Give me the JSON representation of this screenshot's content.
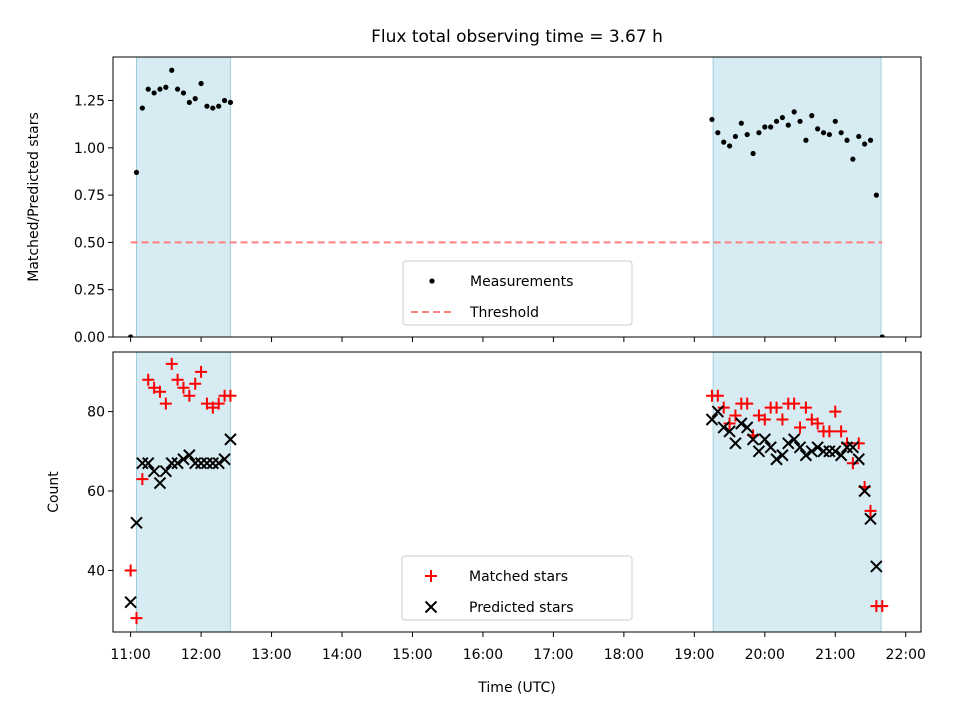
{
  "chart_data": [
    {
      "type": "scatter",
      "title": "Flux total observing time = 3.67 h",
      "xlabel": "",
      "ylabel": "Matched/Predicted stars",
      "xlim": [
        "10:45",
        "22:13"
      ],
      "ylim": [
        0,
        1.48
      ],
      "yticks": [
        "0.00",
        "0.25",
        "0.50",
        "0.75",
        "1.00",
        "1.25"
      ],
      "shaded_intervals": [
        [
          "11:05",
          "12:25"
        ],
        [
          "19:16",
          "21:39"
        ]
      ],
      "legend": {
        "placement": "lower-center",
        "entries": [
          "Measurements",
          "Threshold"
        ]
      },
      "series": [
        {
          "name": "Measurements",
          "marker": "dot",
          "color": "#000000",
          "x": [
            "11:00",
            "11:05",
            "11:10",
            "11:15",
            "11:20",
            "11:25",
            "11:30",
            "11:35",
            "11:40",
            "11:45",
            "11:50",
            "11:55",
            "12:00",
            "12:05",
            "12:10",
            "12:15",
            "12:20",
            "12:25",
            "19:15",
            "19:20",
            "19:25",
            "19:30",
            "19:35",
            "19:40",
            "19:45",
            "19:50",
            "19:55",
            "20:00",
            "20:05",
            "20:10",
            "20:15",
            "20:20",
            "20:25",
            "20:30",
            "20:35",
            "20:40",
            "20:45",
            "20:50",
            "20:55",
            "21:00",
            "21:05",
            "21:10",
            "21:15",
            "21:20",
            "21:25",
            "21:30",
            "21:35",
            "21:40"
          ],
          "y": [
            0.0,
            0.87,
            1.21,
            1.31,
            1.29,
            1.31,
            1.32,
            1.41,
            1.31,
            1.29,
            1.24,
            1.26,
            1.34,
            1.22,
            1.21,
            1.22,
            1.25,
            1.24,
            1.15,
            1.08,
            1.03,
            1.01,
            1.06,
            1.13,
            1.07,
            0.97,
            1.08,
            1.11,
            1.11,
            1.14,
            1.16,
            1.12,
            1.19,
            1.14,
            1.04,
            1.17,
            1.1,
            1.08,
            1.07,
            1.14,
            1.08,
            1.04,
            0.94,
            1.06,
            1.02,
            1.04,
            0.75,
            0.0
          ]
        },
        {
          "name": "Threshold",
          "marker": "dashed-line",
          "color": "#ff7f7f",
          "x": [
            "11:00",
            "21:40"
          ],
          "y": [
            0.5,
            0.5
          ]
        }
      ]
    },
    {
      "type": "scatter",
      "title": "",
      "xlabel": "Time (UTC)",
      "ylabel": "Count",
      "xlim": [
        "10:45",
        "22:13"
      ],
      "ylim": [
        24.5,
        95
      ],
      "yticks": [
        "40",
        "60",
        "80"
      ],
      "xticks": [
        "11:00",
        "12:00",
        "13:00",
        "14:00",
        "15:00",
        "16:00",
        "17:00",
        "18:00",
        "19:00",
        "20:00",
        "21:00",
        "22:00"
      ],
      "shaded_intervals": [
        [
          "11:05",
          "12:25"
        ],
        [
          "19:16",
          "21:39"
        ]
      ],
      "legend": {
        "placement": "lower-center",
        "entries": [
          "Matched stars",
          "Predicted stars"
        ]
      },
      "series": [
        {
          "name": "Matched stars",
          "marker": "plus",
          "color": "#ff0000",
          "x": [
            "11:00",
            "11:05",
            "11:10",
            "11:15",
            "11:20",
            "11:25",
            "11:30",
            "11:35",
            "11:40",
            "11:45",
            "11:50",
            "11:55",
            "12:00",
            "12:05",
            "12:10",
            "12:15",
            "12:20",
            "12:25",
            "19:15",
            "19:20",
            "19:25",
            "19:30",
            "19:35",
            "19:40",
            "19:45",
            "19:50",
            "19:55",
            "20:00",
            "20:05",
            "20:10",
            "20:15",
            "20:20",
            "20:25",
            "20:30",
            "20:35",
            "20:40",
            "20:45",
            "20:50",
            "20:55",
            "21:00",
            "21:05",
            "21:10",
            "21:15",
            "21:20",
            "21:25",
            "21:30",
            "21:35",
            "21:40"
          ],
          "y": [
            40,
            28,
            63,
            88,
            86,
            85,
            82,
            92,
            88,
            86,
            84,
            87,
            90,
            82,
            81,
            82,
            84,
            84,
            84,
            84,
            81,
            77,
            79,
            82,
            82,
            74,
            79,
            78,
            81,
            81,
            78,
            82,
            82,
            76,
            81,
            78,
            77,
            75,
            75,
            80,
            75,
            72,
            67,
            72,
            61,
            55,
            31,
            31
          ]
        },
        {
          "name": "Predicted stars",
          "marker": "cross",
          "color": "#000000",
          "x": [
            "11:00",
            "11:05",
            "11:10",
            "11:15",
            "11:20",
            "11:25",
            "11:30",
            "11:35",
            "11:40",
            "11:45",
            "11:50",
            "11:55",
            "12:00",
            "12:05",
            "12:10",
            "12:15",
            "12:20",
            "12:25",
            "19:15",
            "19:20",
            "19:25",
            "19:30",
            "19:35",
            "19:40",
            "19:45",
            "19:50",
            "19:55",
            "20:00",
            "20:05",
            "20:10",
            "20:15",
            "20:20",
            "20:25",
            "20:30",
            "20:35",
            "20:40",
            "20:45",
            "20:50",
            "20:55",
            "21:00",
            "21:05",
            "21:10",
            "21:15",
            "21:20",
            "21:25",
            "21:30",
            "21:35"
          ],
          "y": [
            32,
            52,
            67,
            67,
            65,
            62,
            65,
            67,
            67,
            68,
            69,
            67,
            67,
            67,
            67,
            67,
            68,
            73,
            78,
            80,
            76,
            75,
            72,
            77,
            76,
            73,
            70,
            73,
            71,
            68,
            69,
            72,
            73,
            71,
            69,
            70,
            71,
            70,
            70,
            70,
            69,
            71,
            71,
            68,
            60,
            53,
            41
          ]
        }
      ]
    }
  ]
}
